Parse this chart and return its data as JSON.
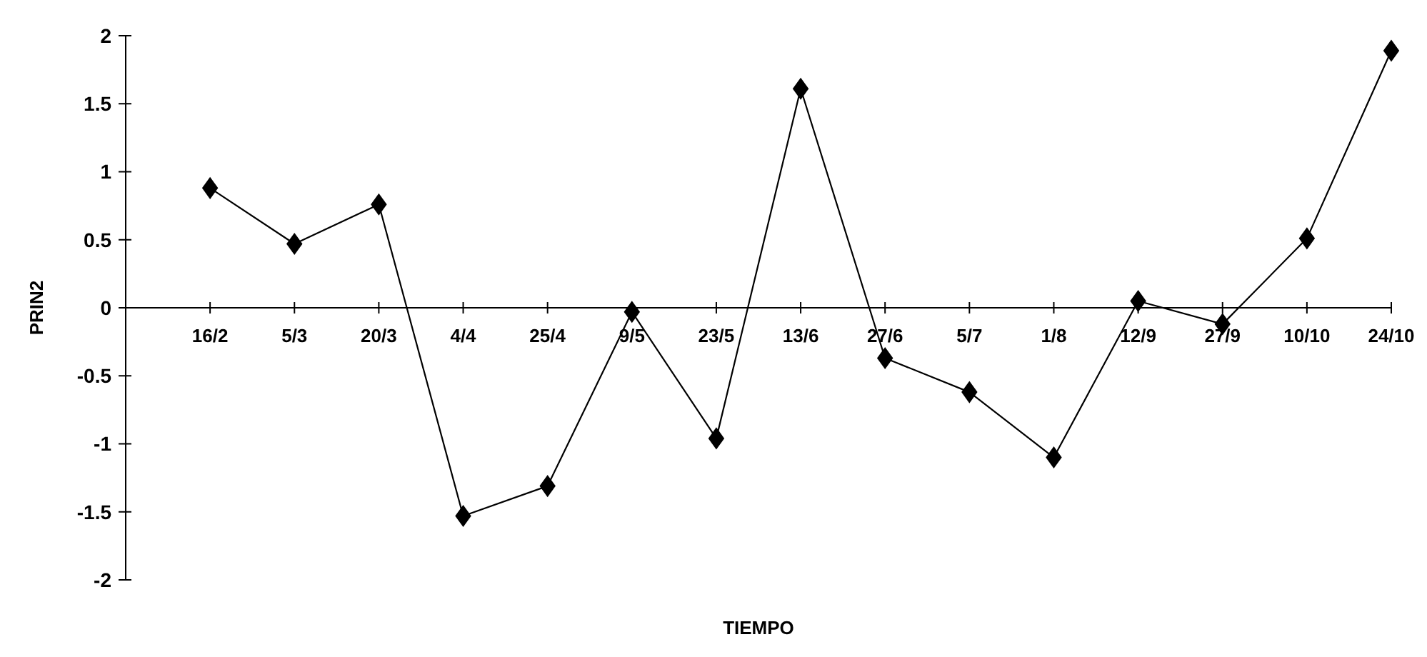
{
  "chart_data": {
    "type": "line",
    "xlabel": "TIEMPO",
    "ylabel": "PRIN2",
    "categories": [
      "16/2",
      "5/3",
      "20/3",
      "4/4",
      "25/4",
      "9/5",
      "23/5",
      "13/6",
      "27/6",
      "5/7",
      "1/8",
      "12/9",
      "27/9",
      "10/10",
      "24/10"
    ],
    "series": [
      {
        "color": "#000000",
        "values": [
          0.88,
          0.47,
          0.76,
          -1.53,
          -1.31,
          -0.03,
          -0.96,
          1.61,
          -0.37,
          -0.62,
          -1.1,
          0.05,
          -0.12,
          0.51,
          1.89
        ]
      }
    ],
    "ylim": [
      -2,
      2
    ],
    "yticks": [
      -2,
      -1.5,
      -1,
      -0.5,
      0,
      0.5,
      1,
      1.5,
      2
    ],
    "grid": false,
    "marker": "diamond",
    "line_style": "solid"
  }
}
